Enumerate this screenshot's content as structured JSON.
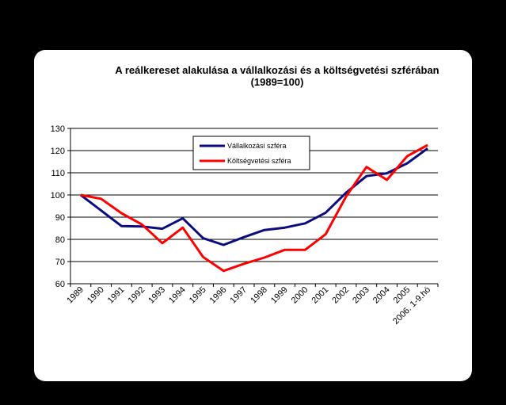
{
  "chart_data": {
    "type": "line",
    "title": "A reálkereset alakulása a vállalkozási és a költségvetési szférában",
    "subtitle": "(1989=100)",
    "xlabel": "",
    "ylabel": "",
    "ylim": [
      60,
      130
    ],
    "yticks": [
      "60",
      "70",
      "80",
      "90",
      "100",
      "110",
      "120",
      "130"
    ],
    "categories": [
      "1989",
      "1990",
      "1991",
      "1992",
      "1993",
      "1994",
      "1995",
      "1996",
      "1997",
      "1998",
      "1999",
      "2000",
      "2001",
      "2002",
      "2003",
      "2004",
      "2005",
      "2006. 1-9.hó"
    ],
    "grid": true,
    "legend_position": "top-center",
    "series": [
      {
        "name": "Vállalkozási szféra",
        "color": "#0c0c80",
        "values": [
          100,
          93,
          86,
          85.8,
          84.8,
          89.5,
          80.5,
          77.5,
          81,
          84.2,
          85.3,
          87.2,
          92,
          101,
          108.5,
          109.8,
          114.3,
          121
        ]
      },
      {
        "name": "Költségvetési szféra",
        "color": "#ff0000",
        "values": [
          100,
          98.3,
          91.8,
          86.7,
          78.3,
          85.3,
          72,
          65.8,
          69,
          71.8,
          75.3,
          75.3,
          82.3,
          99.3,
          112.6,
          106.8,
          117.5,
          122.5
        ]
      }
    ]
  }
}
